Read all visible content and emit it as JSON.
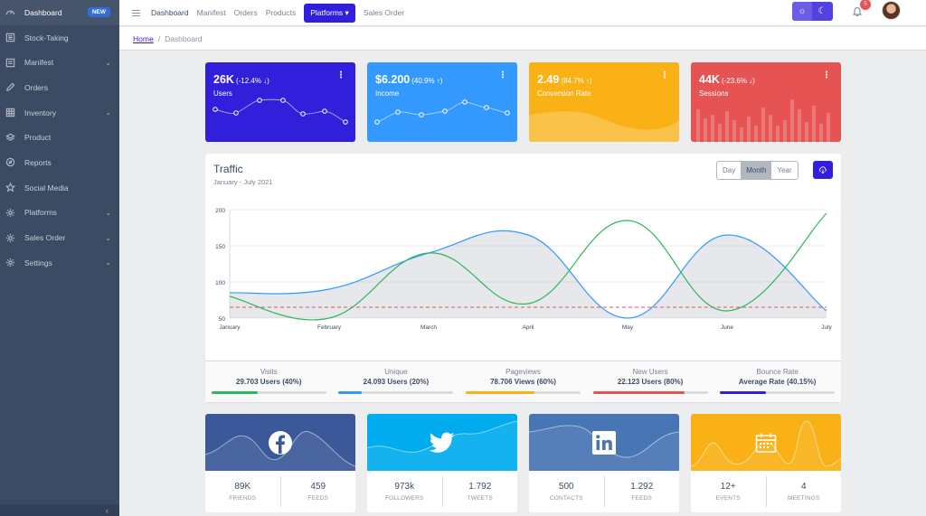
{
  "sidebar": {
    "items": [
      {
        "label": "Dashboard",
        "icon": "speedometer-icon",
        "badge": "NEW",
        "active": true
      },
      {
        "label": "Stock-Taking",
        "icon": "notes-icon"
      },
      {
        "label": "Manifest",
        "icon": "file-icon",
        "has_children": true
      },
      {
        "label": "Orders",
        "icon": "pencil-icon"
      },
      {
        "label": "Inventory",
        "icon": "grid-icon",
        "has_children": true
      },
      {
        "label": "Product",
        "icon": "layers-icon"
      },
      {
        "label": "Reports",
        "icon": "compass-icon"
      },
      {
        "label": "Social Media",
        "icon": "star-icon"
      },
      {
        "label": "Platforms",
        "icon": "gear-icon",
        "has_children": true
      },
      {
        "label": "Sales Order",
        "icon": "gear-icon",
        "has_children": true
      },
      {
        "label": "Settings",
        "icon": "gear-icon",
        "has_children": true
      }
    ],
    "collapse_glyph": "‹"
  },
  "header": {
    "nav": [
      "Dashboard",
      "Manifest",
      "Orders",
      "Products"
    ],
    "platforms_label": "Platforms",
    "after_nav": "Sales Order",
    "notification_count": "5"
  },
  "breadcrumb": {
    "home": "Home",
    "current": "Dashboard"
  },
  "widgets": [
    {
      "value": "26K",
      "change": "(-12.4% ↓)",
      "label": "Users",
      "color": "#321fdb"
    },
    {
      "value": "$6.200",
      "change": "(40.9% ↑)",
      "label": "Income",
      "color": "#3399ff"
    },
    {
      "value": "2.49",
      "change": "(84.7% ↑)",
      "label": "Conversion Rate",
      "color": "#f9b115"
    },
    {
      "value": "44K",
      "change": "(-23.6% ↓)",
      "label": "Sessions",
      "color": "#e55353"
    }
  ],
  "traffic": {
    "title": "Traffic",
    "subtitle": "January - July 2021",
    "periods": [
      "Day",
      "Month",
      "Year"
    ],
    "selected_period": "Month",
    "stats": [
      {
        "title": "Visits",
        "value": "29.703 Users (40%)",
        "percent": 40,
        "color": "#2eb85c"
      },
      {
        "title": "Unique",
        "value": "24.093 Users (20%)",
        "percent": 20,
        "color": "#3399ff"
      },
      {
        "title": "Pageviews",
        "value": "78.706 Views (60%)",
        "percent": 60,
        "color": "#f9b115"
      },
      {
        "title": "New Users",
        "value": "22.123 Users (80%)",
        "percent": 80,
        "color": "#e55353"
      },
      {
        "title": "Bounce Rate",
        "value": "Average Rate (40.15%)",
        "percent": 40.15,
        "color": "#321fdb"
      }
    ]
  },
  "chart_data": {
    "type": "line",
    "categories": [
      "January",
      "February",
      "March",
      "April",
      "May",
      "June",
      "July"
    ],
    "y_ticks": [
      50,
      100,
      150,
      200
    ],
    "ylim": [
      50,
      200
    ],
    "grid": true,
    "series": [
      {
        "values": [
          85,
          90,
          140,
          165,
          50,
          165,
          60
        ],
        "color": "#3399ff",
        "fill": true
      },
      {
        "values": [
          80,
          50,
          140,
          70,
          185,
          60,
          195
        ],
        "color": "#2eb85c"
      },
      {
        "values": [
          65,
          65,
          65,
          65,
          65,
          65,
          65
        ],
        "color": "#e55353",
        "dashed": true
      }
    ]
  },
  "social": [
    {
      "brand": "facebook-icon",
      "color": "#3b5998",
      "a_value": "89K",
      "a_label": "FRIENDS",
      "b_value": "459",
      "b_label": "FEEDS"
    },
    {
      "brand": "twitter-icon",
      "color": "#00aced",
      "a_value": "973k",
      "a_label": "FOLLOWERS",
      "b_value": "1.792",
      "b_label": "TWEETS"
    },
    {
      "brand": "linkedin-icon",
      "color": "#4875b4",
      "a_value": "500",
      "a_label": "CONTACTS",
      "b_value": "1.292",
      "b_label": "FEEDS"
    },
    {
      "brand": "calendar-icon",
      "color": "#f9b115",
      "a_value": "12+",
      "a_label": "EVENTS",
      "b_value": "4",
      "b_label": "MEETINGS"
    }
  ]
}
